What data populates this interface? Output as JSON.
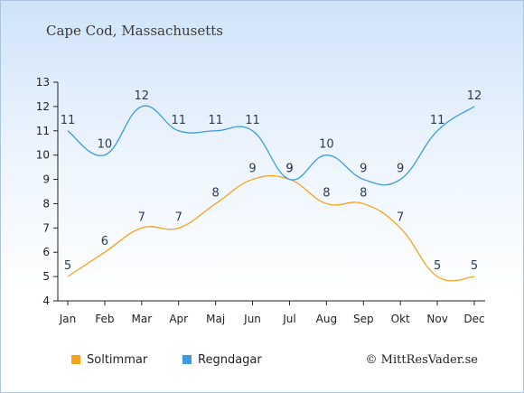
{
  "title": "Cape Cod, Massachusetts",
  "credit": "© MittResVader.se",
  "legend": [
    {
      "label": "Soltimmar",
      "color": "#f7a21b"
    },
    {
      "label": "Regndagar",
      "color": "#3b9ae1"
    }
  ],
  "chart_data": {
    "type": "line",
    "title": "Cape Cod, Massachusetts",
    "categories": [
      "Jan",
      "Feb",
      "Mar",
      "Apr",
      "Maj",
      "Jun",
      "Jul",
      "Aug",
      "Sep",
      "Okt",
      "Nov",
      "Dec"
    ],
    "series": [
      {
        "name": "Soltimmar",
        "color": "#f7a21b",
        "values": [
          5,
          6,
          7,
          7,
          8,
          9,
          9,
          8,
          8,
          7,
          5,
          5
        ]
      },
      {
        "name": "Regndagar",
        "color": "#3b9ae1",
        "values": [
          11,
          10,
          12,
          11,
          11,
          11,
          9,
          10,
          9,
          9,
          11,
          12
        ]
      }
    ],
    "ylim": [
      4,
      13
    ],
    "yticks": [
      4,
      5,
      6,
      7,
      8,
      9,
      10,
      11,
      12,
      13
    ],
    "xlabel": "",
    "ylabel": "",
    "grid": false,
    "legend_position": "bottom-left"
  }
}
